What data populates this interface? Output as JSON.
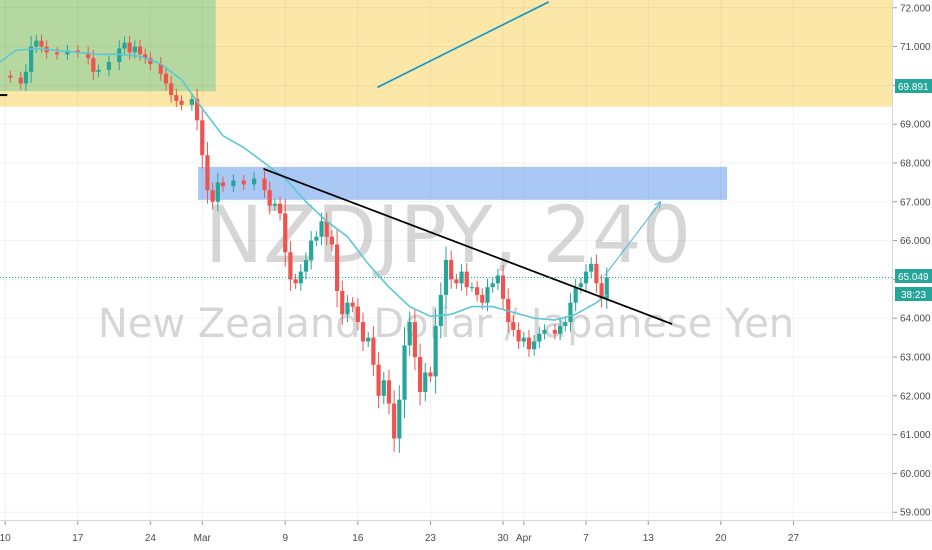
{
  "chart_data": {
    "type": "candlestick",
    "symbol": "NZDJPY",
    "interval": "240",
    "description": "New Zealand Dollar / Japanese Yen",
    "price_axis": {
      "range": [
        58.8,
        72.2
      ],
      "ticks": [
        "59.000",
        "60.000",
        "61.000",
        "62.000",
        "63.000",
        "64.000",
        "65.000",
        "66.000",
        "67.000",
        "68.000",
        "69.000",
        "70.000",
        "71.000",
        "72.000"
      ]
    },
    "time_axis": {
      "ticks": [
        {
          "label": "10",
          "day": 10
        },
        {
          "label": "17",
          "day": 17
        },
        {
          "label": "24",
          "day": 24
        },
        {
          "label": "Mar",
          "day": 29
        },
        {
          "label": "9",
          "day": 37
        },
        {
          "label": "16",
          "day": 44
        },
        {
          "label": "23",
          "day": 51
        },
        {
          "label": "30",
          "day": 58
        },
        {
          "label": "Apr",
          "day": 60
        },
        {
          "label": "7",
          "day": 66
        },
        {
          "label": "13",
          "day": 72
        },
        {
          "label": "20",
          "day": 79
        },
        {
          "label": "27",
          "day": 86
        }
      ],
      "range_days": [
        9.5,
        95.5
      ]
    },
    "price_badges": {
      "resistance": "69.891",
      "current": "65.049",
      "countdown": "38:23"
    },
    "closes": [
      [
        9.5,
        70.25
      ],
      [
        10.5,
        70.2
      ],
      [
        11.5,
        70.05
      ],
      [
        12,
        70.35
      ],
      [
        12.5,
        71.0
      ],
      [
        13,
        71.15
      ],
      [
        13.5,
        71.0
      ],
      [
        14,
        70.85
      ],
      [
        15,
        70.8
      ],
      [
        16,
        70.9
      ],
      [
        17,
        70.85
      ],
      [
        18,
        70.7
      ],
      [
        18.5,
        70.35
      ],
      [
        19,
        70.4
      ],
      [
        20,
        70.6
      ],
      [
        21,
        70.95
      ],
      [
        21.5,
        71.1
      ],
      [
        22,
        70.85
      ],
      [
        22.5,
        71.0
      ],
      [
        23,
        70.8
      ],
      [
        23.5,
        70.7
      ],
      [
        24,
        70.55
      ],
      [
        25,
        70.3
      ],
      [
        25.5,
        70.05
      ],
      [
        26,
        69.75
      ],
      [
        26.5,
        69.6
      ],
      [
        27,
        69.5
      ],
      [
        28,
        69.65
      ],
      [
        28.5,
        69.1
      ],
      [
        29,
        68.2
      ],
      [
        29.5,
        67.3
      ],
      [
        30,
        67.0
      ],
      [
        30.5,
        67.5
      ],
      [
        31,
        67.4
      ],
      [
        32,
        67.55
      ],
      [
        33,
        67.45
      ],
      [
        34,
        67.6
      ],
      [
        35,
        67.3
      ],
      [
        35.5,
        66.9
      ],
      [
        36,
        66.95
      ],
      [
        36.5,
        66.7
      ],
      [
        37,
        65.7
      ],
      [
        37.5,
        65.0
      ],
      [
        38,
        64.9
      ],
      [
        38.5,
        65.2
      ],
      [
        39,
        65.5
      ],
      [
        39.5,
        66.0
      ],
      [
        40,
        66.1
      ],
      [
        40.5,
        66.5
      ],
      [
        41,
        66.1
      ],
      [
        41.5,
        65.9
      ],
      [
        42,
        64.7
      ],
      [
        42.5,
        64.1
      ],
      [
        43,
        64.4
      ],
      [
        43.5,
        64.3
      ],
      [
        44,
        63.9
      ],
      [
        44.5,
        63.4
      ],
      [
        45,
        63.5
      ],
      [
        45.5,
        62.8
      ],
      [
        46,
        62.0
      ],
      [
        46.5,
        62.4
      ],
      [
        47,
        61.8
      ],
      [
        47.5,
        60.9
      ],
      [
        48,
        61.9
      ],
      [
        48.5,
        63.3
      ],
      [
        49,
        63.9
      ],
      [
        49.5,
        63.0
      ],
      [
        50,
        62.1
      ],
      [
        50.5,
        62.6
      ],
      [
        51,
        62.5
      ],
      [
        51.5,
        63.8
      ],
      [
        52,
        64.6
      ],
      [
        52.5,
        65.5
      ],
      [
        53,
        65.0
      ],
      [
        53.5,
        64.9
      ],
      [
        54,
        65.2
      ],
      [
        54.5,
        64.8
      ],
      [
        55,
        64.8
      ],
      [
        55.5,
        64.6
      ],
      [
        56,
        64.4
      ],
      [
        56.5,
        64.8
      ],
      [
        57,
        64.9
      ],
      [
        57.5,
        65.1
      ],
      [
        58,
        64.5
      ],
      [
        58.5,
        63.9
      ],
      [
        59,
        63.7
      ],
      [
        59.5,
        63.4
      ],
      [
        60,
        63.5
      ],
      [
        60.5,
        63.2
      ],
      [
        61,
        63.4
      ],
      [
        61.5,
        63.6
      ],
      [
        62,
        63.7
      ],
      [
        63,
        63.6
      ],
      [
        63.5,
        63.8
      ],
      [
        64,
        63.9
      ],
      [
        64.5,
        64.4
      ],
      [
        65,
        64.8
      ],
      [
        65.5,
        64.9
      ],
      [
        66,
        65.2
      ],
      [
        66.5,
        65.4
      ],
      [
        67,
        64.9
      ],
      [
        67.5,
        64.5
      ],
      [
        68,
        65.05
      ]
    ],
    "ema_line": [
      [
        9.5,
        70.6
      ],
      [
        11,
        70.9
      ],
      [
        13,
        70.95
      ],
      [
        15,
        70.9
      ],
      [
        17,
        70.85
      ],
      [
        19,
        70.8
      ],
      [
        21,
        70.8
      ],
      [
        23,
        70.75
      ],
      [
        25,
        70.55
      ],
      [
        27,
        70.15
      ],
      [
        29,
        69.4
      ],
      [
        31,
        68.7
      ],
      [
        33,
        68.4
      ],
      [
        35,
        68.0
      ],
      [
        37,
        67.6
      ],
      [
        39,
        67.0
      ],
      [
        41,
        66.5
      ],
      [
        43,
        66.1
      ],
      [
        45,
        65.4
      ],
      [
        47,
        64.8
      ],
      [
        49,
        64.3
      ],
      [
        51,
        64.05
      ],
      [
        53,
        64.1
      ],
      [
        55,
        64.3
      ],
      [
        57,
        64.3
      ],
      [
        59,
        64.15
      ],
      [
        61,
        64.0
      ],
      [
        63,
        63.95
      ],
      [
        65,
        64.1
      ],
      [
        67,
        64.4
      ],
      [
        68,
        64.6
      ]
    ],
    "zones": [
      {
        "kind": "supply",
        "color": "#fbe7a8",
        "from_day": 9.5,
        "to_day": 95.5,
        "low": 69.45,
        "high": 72.2
      },
      {
        "kind": "range",
        "color": "#b5d7a0",
        "from_day": 9.5,
        "to_day": 30.3,
        "low": 69.85,
        "high": 72.2
      },
      {
        "kind": "target",
        "color": "#aac8f4",
        "from_day": 28.6,
        "to_day": 79.6,
        "low": 67.05,
        "high": 67.9
      }
    ],
    "lines": [
      {
        "kind": "trendline",
        "color": "#000000",
        "from": [
          34.9,
          67.85
        ],
        "to": [
          74.3,
          63.85
        ]
      },
      {
        "kind": "trendline",
        "color": "#1a95c8",
        "from": [
          45.9,
          69.95
        ],
        "to": [
          62.4,
          72.15
        ]
      },
      {
        "kind": "projection",
        "color": "#4fb3e0",
        "from": [
          67.8,
          65.1
        ],
        "to": [
          73.2,
          67.0
        ]
      },
      {
        "kind": "marker",
        "color": "#000000",
        "from": [
          9.5,
          69.75
        ],
        "to": [
          10.2,
          69.75
        ]
      }
    ],
    "colors": {
      "up": "#26a69a",
      "down": "#ef5350",
      "ema": "#5bc8d8",
      "last_price": "#26a69a",
      "resistance_badge": "#26a69a"
    }
  }
}
